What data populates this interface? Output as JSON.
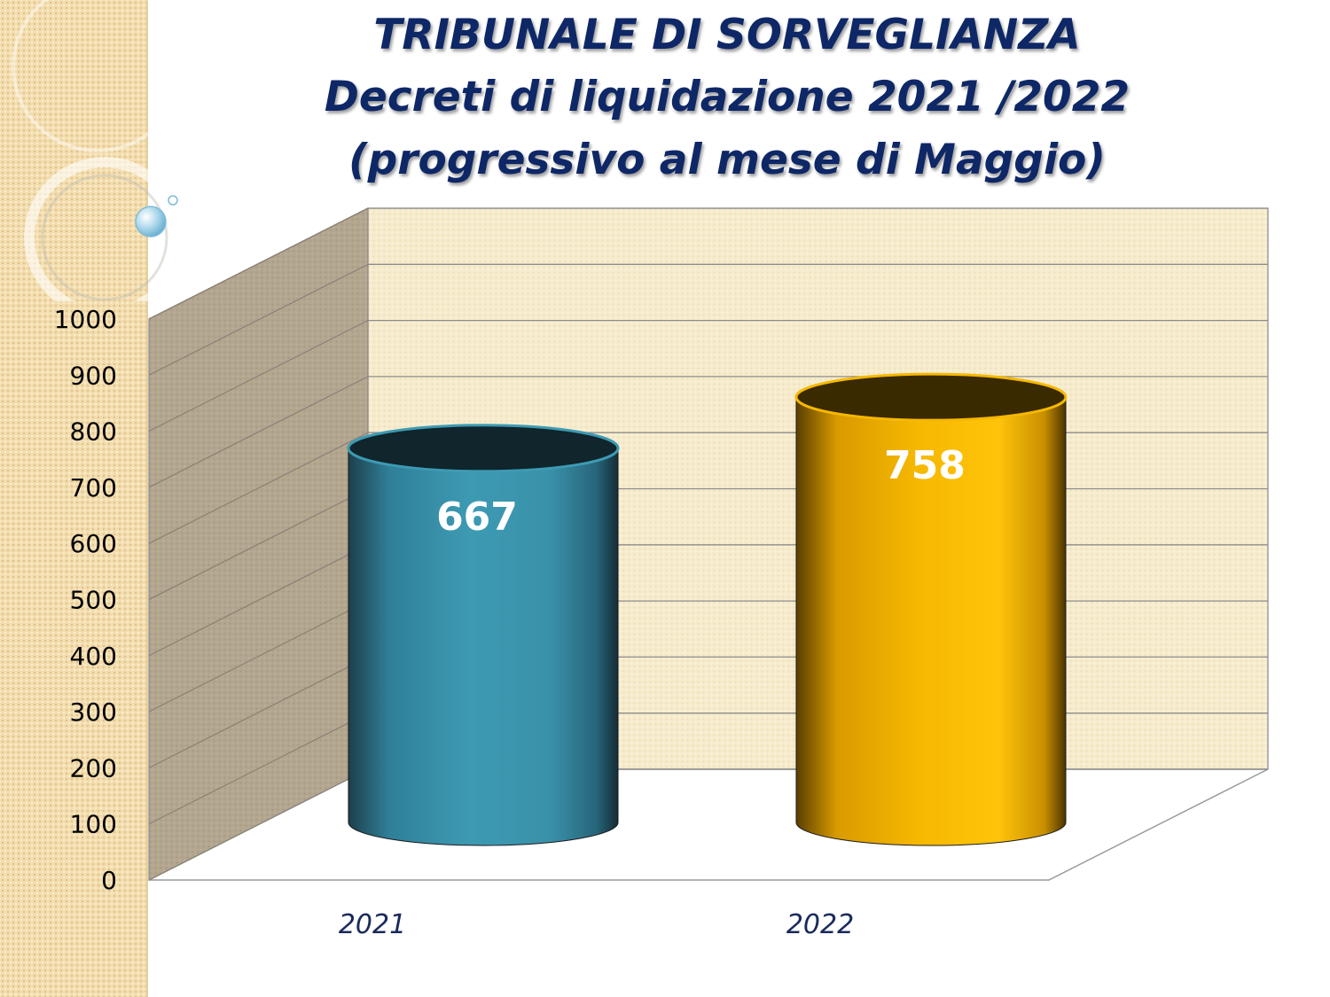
{
  "slide": {
    "title_lines": [
      "TRIBUNALE DI SORVEGLIANZA",
      "Decreti di liquidazione 2021 /2022",
      "(progressivo al mese di Maggio)"
    ]
  },
  "colors": {
    "bar_2021": "#3a98b0",
    "bar_2022": "#f0b000",
    "title": "#0e2766",
    "back_wall": "#f6eccd",
    "side_wall": "#b3a68f"
  },
  "chart_data": {
    "type": "bar",
    "style": "3d-cylinder",
    "categories": [
      "2021",
      "2022"
    ],
    "values": [
      667,
      758
    ],
    "data_labels": [
      "667",
      "758"
    ],
    "title": "TRIBUNALE DI SORVEGLIANZA — Decreti di liquidazione 2021 /2022 (progressivo al mese di Maggio)",
    "xlabel": "",
    "ylabel": "",
    "ylim": [
      0,
      1000
    ],
    "yticks": [
      0,
      100,
      200,
      300,
      400,
      500,
      600,
      700,
      800,
      900,
      1000
    ],
    "ytick_labels": [
      "0",
      "100",
      "200",
      "300",
      "400",
      "500",
      "600",
      "700",
      "800",
      "900",
      "1000"
    ],
    "grid": true,
    "legend": "none"
  }
}
